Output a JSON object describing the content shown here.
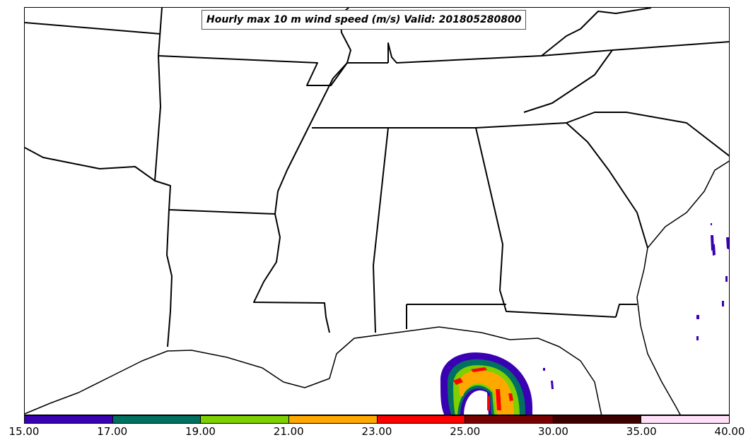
{
  "title": "Hourly max 10 m wind speed (m/s) Valid: 201805280800",
  "map": {
    "region": "Southeastern United States and northern Gulf of Mexico",
    "features": [
      "state-boundaries",
      "coastline",
      "wind-speed-contours"
    ]
  },
  "colorbar": {
    "ticks": [
      "15.00",
      "17.00",
      "19.00",
      "21.00",
      "23.00",
      "25.00",
      "30.00",
      "35.00",
      "40.00"
    ],
    "colors": [
      "#3a00b4",
      "#007060",
      "#7ed000",
      "#ffa800",
      "#ff0000",
      "#780000",
      "#3c0000",
      "#ffe0f8"
    ]
  }
}
